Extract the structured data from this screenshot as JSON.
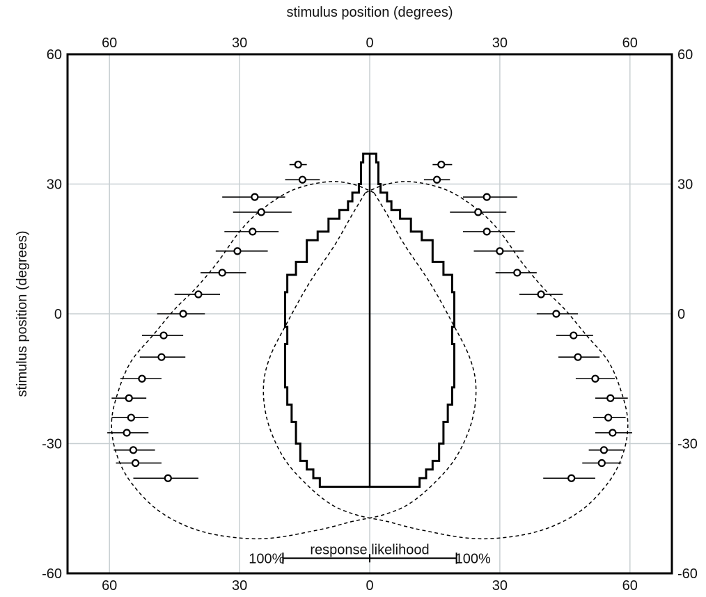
{
  "chart_data": {
    "type": "scatter",
    "x_axis_title": "stimulus position (degrees)",
    "y_axis_title": "stimulus position (degrees)",
    "xlim": [
      -70,
      70
    ],
    "ylim": [
      -60,
      60
    ],
    "x_ticks": [
      -60,
      -30,
      0,
      30,
      60
    ],
    "x_tick_labels": [
      "60",
      "30",
      "0",
      "30",
      "60"
    ],
    "y_ticks": [
      -60,
      -30,
      0,
      30,
      60
    ],
    "y_tick_labels": [
      "-60",
      "-30",
      "0",
      "30",
      "60"
    ],
    "grid": true,
    "left_points": [
      {
        "y": 34.5,
        "x": -16.5,
        "xmin": -18.5,
        "xmax": -14.5
      },
      {
        "y": 31.0,
        "x": -15.5,
        "xmin": -19.5,
        "xmax": -11.5
      },
      {
        "y": 27.0,
        "x": -26.5,
        "xmin": -34.0,
        "xmax": -19.5
      },
      {
        "y": 23.5,
        "x": -25.0,
        "xmin": -31.5,
        "xmax": -18.0
      },
      {
        "y": 19.0,
        "x": -27.0,
        "xmin": -33.5,
        "xmax": -21.0
      },
      {
        "y": 14.5,
        "x": -30.5,
        "xmin": -35.5,
        "xmax": -23.5
      },
      {
        "y": 9.5,
        "x": -34.0,
        "xmin": -39.0,
        "xmax": -28.5
      },
      {
        "y": 4.5,
        "x": -39.5,
        "xmin": -45.0,
        "xmax": -34.5
      },
      {
        "y": 0.0,
        "x": -43.0,
        "xmin": -49.0,
        "xmax": -38.0
      },
      {
        "y": -5.0,
        "x": -47.5,
        "xmin": -52.5,
        "xmax": -43.0
      },
      {
        "y": -10.0,
        "x": -48.0,
        "xmin": -53.0,
        "xmax": -42.5
      },
      {
        "y": -15.0,
        "x": -52.5,
        "xmin": -57.5,
        "xmax": -48.0
      },
      {
        "y": -19.5,
        "x": -55.5,
        "xmin": -59.5,
        "xmax": -51.5
      },
      {
        "y": -24.0,
        "x": -55.0,
        "xmin": -59.5,
        "xmax": -51.0
      },
      {
        "y": -27.5,
        "x": -56.0,
        "xmin": -60.5,
        "xmax": -51.0
      },
      {
        "y": -31.5,
        "x": -54.5,
        "xmin": -59.0,
        "xmax": -49.5
      },
      {
        "y": -34.5,
        "x": -54.0,
        "xmin": -58.5,
        "xmax": -48.0
      },
      {
        "y": -38.0,
        "x": -46.5,
        "xmin": -54.5,
        "xmax": -39.5
      }
    ],
    "right_points": [
      {
        "y": 34.5,
        "x": 16.5,
        "xmin": 14.5,
        "xmax": 19.0
      },
      {
        "y": 31.0,
        "x": 15.5,
        "xmin": 12.5,
        "xmax": 18.5
      },
      {
        "y": 27.0,
        "x": 27.0,
        "xmin": 21.5,
        "xmax": 34.0
      },
      {
        "y": 23.5,
        "x": 25.0,
        "xmin": 18.5,
        "xmax": 31.5
      },
      {
        "y": 19.0,
        "x": 27.0,
        "xmin": 21.5,
        "xmax": 33.5
      },
      {
        "y": 14.5,
        "x": 30.0,
        "xmin": 24.0,
        "xmax": 35.5
      },
      {
        "y": 9.5,
        "x": 34.0,
        "xmin": 29.0,
        "xmax": 38.5
      },
      {
        "y": 4.5,
        "x": 39.5,
        "xmin": 34.5,
        "xmax": 44.5
      },
      {
        "y": 0.0,
        "x": 43.0,
        "xmin": 38.5,
        "xmax": 48.0
      },
      {
        "y": -5.0,
        "x": 47.0,
        "xmin": 43.0,
        "xmax": 51.5
      },
      {
        "y": -10.0,
        "x": 48.0,
        "xmin": 43.5,
        "xmax": 53.0
      },
      {
        "y": -15.0,
        "x": 52.0,
        "xmin": 47.5,
        "xmax": 56.5
      },
      {
        "y": -19.5,
        "x": 55.5,
        "xmin": 52.0,
        "xmax": 59.5
      },
      {
        "y": -24.0,
        "x": 55.0,
        "xmin": 51.5,
        "xmax": 59.0
      },
      {
        "y": -27.5,
        "x": 56.0,
        "xmin": 52.0,
        "xmax": 60.5
      },
      {
        "y": -31.5,
        "x": 54.0,
        "xmin": 50.5,
        "xmax": 58.5
      },
      {
        "y": -34.5,
        "x": 53.5,
        "xmin": 49.0,
        "xmax": 58.0
      },
      {
        "y": -38.0,
        "x": 46.5,
        "xmin": 40.0,
        "xmax": 52.0
      }
    ],
    "response_profile": [
      {
        "y": 37.0,
        "width": 1.5
      },
      {
        "y": 35.0,
        "width": 2.0
      },
      {
        "y": 30.0,
        "width": 2.5
      },
      {
        "y": 28.0,
        "width": 4.0
      },
      {
        "y": 26.0,
        "width": 5.0
      },
      {
        "y": 24.0,
        "width": 7.0
      },
      {
        "y": 22.0,
        "width": 9.5
      },
      {
        "y": 19.0,
        "width": 12.0
      },
      {
        "y": 17.0,
        "width": 14.5
      },
      {
        "y": 12.0,
        "width": 17.0
      },
      {
        "y": 9.0,
        "width": 19.0
      },
      {
        "y": 5.0,
        "width": 19.5
      },
      {
        "y": 1.0,
        "width": 19.5
      },
      {
        "y": -3.0,
        "width": 19.0
      },
      {
        "y": -7.0,
        "width": 19.5
      },
      {
        "y": -12.0,
        "width": 19.5
      },
      {
        "y": -17.0,
        "width": 19.0
      },
      {
        "y": -21.0,
        "width": 18.0
      },
      {
        "y": -25.0,
        "width": 17.0
      },
      {
        "y": -30.0,
        "width": 16.0
      },
      {
        "y": -34.0,
        "width": 14.5
      },
      {
        "y": -36.0,
        "width": 13.0
      },
      {
        "y": -38.0,
        "width": 11.5
      },
      {
        "y": -40.0,
        "width": 0
      }
    ],
    "dashed_right_curve": [
      [
        -1,
        28
      ],
      [
        4,
        30
      ],
      [
        10,
        30.5
      ],
      [
        18,
        28.5
      ],
      [
        25,
        24
      ],
      [
        30,
        19
      ],
      [
        35,
        12
      ],
      [
        40,
        6
      ],
      [
        45,
        1
      ],
      [
        50,
        -5
      ],
      [
        55,
        -11
      ],
      [
        58,
        -18
      ],
      [
        59.5,
        -25
      ],
      [
        58.5,
        -32
      ],
      [
        55,
        -39
      ],
      [
        48,
        -46
      ],
      [
        38,
        -50.5
      ],
      [
        25,
        -52
      ],
      [
        12,
        -50
      ],
      [
        4,
        -48
      ],
      [
        -3,
        -46.5
      ],
      [
        -9,
        -44
      ],
      [
        -15,
        -39
      ],
      [
        -20,
        -33
      ],
      [
        -23.5,
        -25
      ],
      [
        -24.5,
        -17
      ],
      [
        -23,
        -10
      ],
      [
        -19,
        -2
      ],
      [
        -14,
        7
      ],
      [
        -8,
        16
      ],
      [
        -4,
        23
      ],
      [
        -1,
        28
      ]
    ],
    "scale_bar": {
      "label": "response likelihood",
      "left_label": "100%",
      "right_label": "100%",
      "y": -56.5,
      "x_start": -20,
      "x_end": 20
    }
  }
}
